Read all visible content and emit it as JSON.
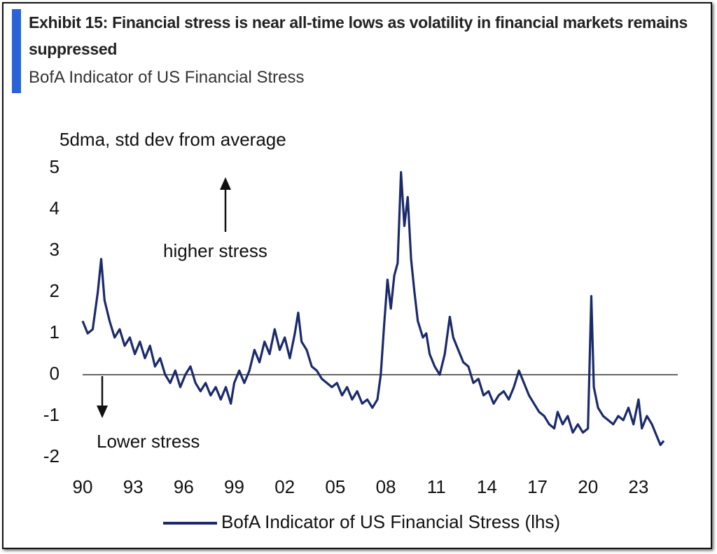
{
  "chart_data": {
    "type": "line",
    "title": "Exhibit 15: Financial stress is near all-time lows as volatility in financial markets remains suppressed",
    "subtitle": "BofA Indicator of US Financial Stress",
    "y_label": "5dma, std dev from average",
    "annotations": [
      "higher stress",
      "Lower stress"
    ],
    "xlim": [
      1990,
      2025
    ],
    "xticks": [
      {
        "value": 1990,
        "label": "90"
      },
      {
        "value": 1993,
        "label": "93"
      },
      {
        "value": 1996,
        "label": "96"
      },
      {
        "value": 1999,
        "label": "99"
      },
      {
        "value": 2002,
        "label": "02"
      },
      {
        "value": 2005,
        "label": "05"
      },
      {
        "value": 2008,
        "label": "08"
      },
      {
        "value": 2011,
        "label": "11"
      },
      {
        "value": 2014,
        "label": "14"
      },
      {
        "value": 2017,
        "label": "17"
      },
      {
        "value": 2020,
        "label": "20"
      },
      {
        "value": 2023,
        "label": "23"
      }
    ],
    "ylim": [
      -2,
      5
    ],
    "yticks": [
      5,
      4,
      3,
      2,
      1,
      0,
      -1,
      -2
    ],
    "x": [
      1990.0,
      1990.3,
      1990.6,
      1990.9,
      1991.1,
      1991.3,
      1991.6,
      1991.9,
      1992.2,
      1992.5,
      1992.8,
      1993.1,
      1993.4,
      1993.7,
      1994.0,
      1994.3,
      1994.6,
      1994.9,
      1995.2,
      1995.5,
      1995.8,
      1996.1,
      1996.4,
      1996.7,
      1997.0,
      1997.3,
      1997.6,
      1997.9,
      1998.2,
      1998.5,
      1998.8,
      1999.0,
      1999.3,
      1999.6,
      1999.9,
      2000.2,
      2000.5,
      2000.8,
      2001.1,
      2001.4,
      2001.7,
      2002.0,
      2002.3,
      2002.6,
      2002.8,
      2003.0,
      2003.3,
      2003.6,
      2003.9,
      2004.2,
      2004.5,
      2004.8,
      2005.1,
      2005.4,
      2005.7,
      2006.0,
      2006.3,
      2006.6,
      2006.9,
      2007.2,
      2007.5,
      2007.7,
      2007.9,
      2008.1,
      2008.3,
      2008.5,
      2008.7,
      2008.9,
      2009.1,
      2009.3,
      2009.5,
      2009.7,
      2009.9,
      2010.2,
      2010.4,
      2010.6,
      2010.9,
      2011.2,
      2011.5,
      2011.8,
      2012.0,
      2012.3,
      2012.6,
      2012.9,
      2013.2,
      2013.5,
      2013.8,
      2014.1,
      2014.4,
      2014.7,
      2015.0,
      2015.3,
      2015.6,
      2015.9,
      2016.2,
      2016.5,
      2016.8,
      2017.1,
      2017.4,
      2017.7,
      2018.0,
      2018.2,
      2018.5,
      2018.8,
      2019.1,
      2019.4,
      2019.7,
      2020.0,
      2020.2,
      2020.35,
      2020.6,
      2020.9,
      2021.2,
      2021.5,
      2021.8,
      2022.1,
      2022.4,
      2022.7,
      2023.0,
      2023.2,
      2023.5,
      2023.8,
      2024.1,
      2024.3,
      2024.5
    ],
    "series": [
      {
        "name": "BofA Indicator of US Financial Stress (lhs)",
        "color": "#1b2a6b",
        "values": [
          1.3,
          1.0,
          1.1,
          2.0,
          2.8,
          1.8,
          1.3,
          0.9,
          1.1,
          0.7,
          0.9,
          0.5,
          0.8,
          0.4,
          0.7,
          0.2,
          0.4,
          0.0,
          -0.2,
          0.1,
          -0.3,
          0.0,
          0.2,
          -0.2,
          -0.4,
          -0.2,
          -0.5,
          -0.3,
          -0.6,
          -0.3,
          -0.7,
          -0.2,
          0.1,
          -0.2,
          0.1,
          0.6,
          0.3,
          0.8,
          0.5,
          1.1,
          0.6,
          0.9,
          0.4,
          1.0,
          1.5,
          0.8,
          0.6,
          0.2,
          0.1,
          -0.1,
          -0.2,
          -0.3,
          -0.2,
          -0.5,
          -0.3,
          -0.6,
          -0.4,
          -0.7,
          -0.6,
          -0.8,
          -0.6,
          0.0,
          1.2,
          2.3,
          1.6,
          2.4,
          2.7,
          4.9,
          3.6,
          4.3,
          2.8,
          2.0,
          1.3,
          0.9,
          1.0,
          0.5,
          0.2,
          0.0,
          0.5,
          1.4,
          0.9,
          0.6,
          0.3,
          0.2,
          -0.2,
          -0.1,
          -0.5,
          -0.4,
          -0.7,
          -0.5,
          -0.4,
          -0.6,
          -0.3,
          0.1,
          -0.2,
          -0.5,
          -0.7,
          -0.9,
          -1.0,
          -1.2,
          -1.3,
          -0.9,
          -1.2,
          -1.0,
          -1.4,
          -1.2,
          -1.4,
          -1.3,
          1.9,
          -0.3,
          -0.8,
          -1.0,
          -1.1,
          -1.2,
          -1.0,
          -1.1,
          -0.8,
          -1.2,
          -0.6,
          -1.3,
          -1.0,
          -1.2,
          -1.5,
          -1.7,
          -1.6
        ]
      }
    ]
  }
}
